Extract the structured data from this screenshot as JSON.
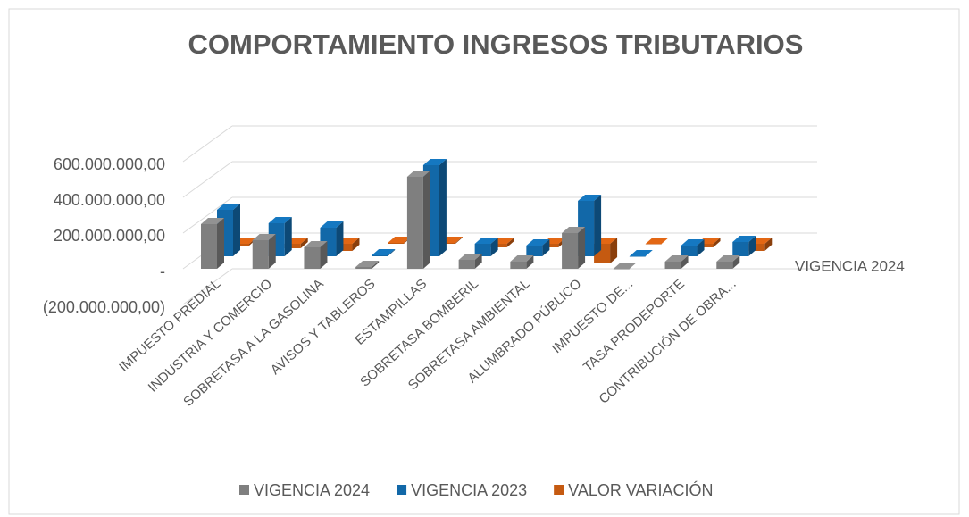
{
  "chart_data": {
    "type": "bar3d",
    "title": "COMPORTAMIENTO INGRESOS TRIBUTARIOS",
    "categories": [
      "IMPUESTO PREDIAL",
      "INDUSTRIA Y COMERCIO",
      "SOBRETASA A LA GASOLINA",
      "AVISOS Y TABLEROS",
      "ESTAMPILLAS",
      "SOBRETASA BOMBERIL",
      "SOBRETASA AMBIENTAL",
      "ALUMBRADO PÚBLICO",
      "IMPUESTO DE...",
      "TASA PRODEPORTE",
      "CONTRIBUCIÓN DE OBRA..."
    ],
    "series": [
      {
        "name": "VIGENCIA 2024",
        "color": "#7f7f7f",
        "values": [
          250000000,
          160000000,
          120000000,
          10000000,
          515000000,
          50000000,
          40000000,
          200000000,
          0,
          40000000,
          40000000
        ]
      },
      {
        "name": "VIGENCIA 2023",
        "color": "#1268a8",
        "values": [
          260000000,
          185000000,
          160000000,
          5000000,
          510000000,
          70000000,
          60000000,
          310000000,
          0,
          60000000,
          80000000
        ]
      },
      {
        "name": "VALOR VARIACIÓN",
        "color": "#c55a11",
        "values": [
          -10000000,
          -25000000,
          -40000000,
          5000000,
          5000000,
          -20000000,
          -20000000,
          -110000000,
          0,
          -20000000,
          -40000000
        ]
      }
    ],
    "ylim": [
      -200000000,
      600000000
    ],
    "yticks": [
      {
        "value": 600000000,
        "label": "600.000.000,00"
      },
      {
        "value": 400000000,
        "label": "400.000.000,00"
      },
      {
        "value": 200000000,
        "label": "200.000.000,00"
      },
      {
        "value": 0,
        "label": "-"
      },
      {
        "value": -200000000,
        "label": "(200.000.000,00)"
      }
    ],
    "grid": true,
    "legend": "bottom"
  }
}
